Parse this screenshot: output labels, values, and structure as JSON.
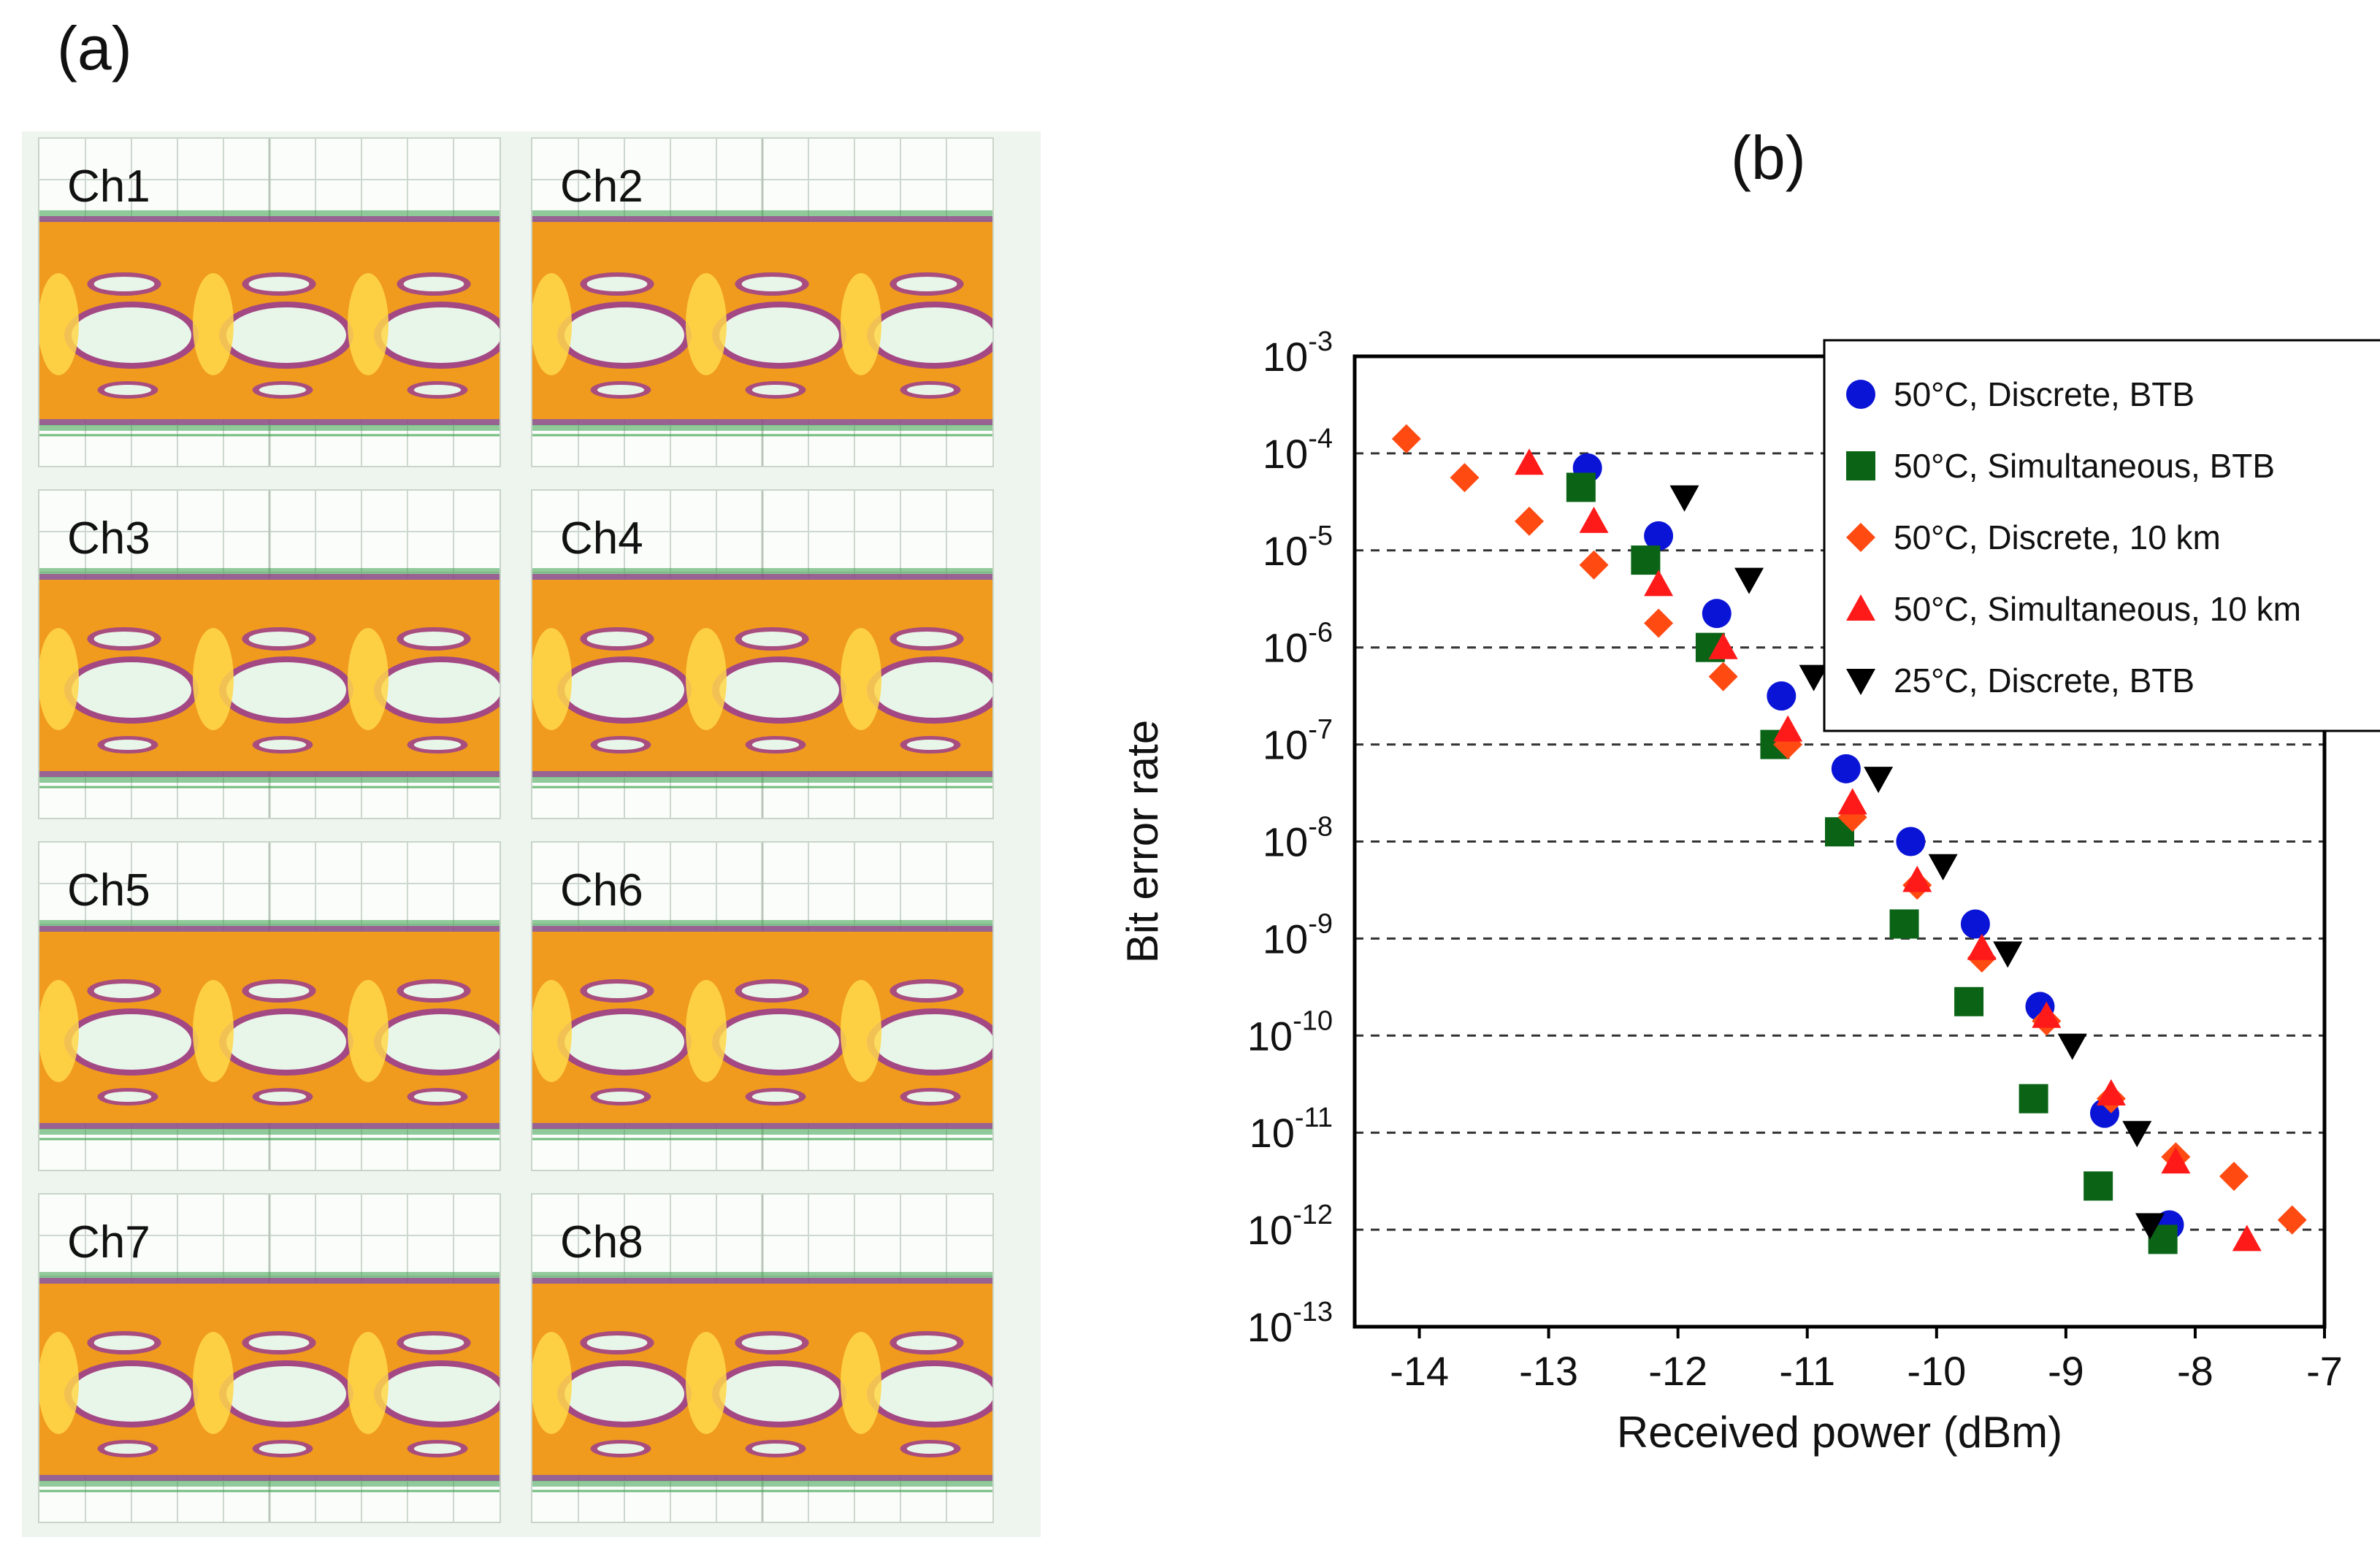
{
  "panel_a": {
    "label": "(a)",
    "channels": [
      "Ch1",
      "Ch2",
      "Ch3",
      "Ch4",
      "Ch5",
      "Ch6",
      "Ch7",
      "Ch8"
    ]
  },
  "panel_b": {
    "label": "(b)"
  },
  "colors": {
    "blue": "#0a14d6",
    "green": "#0b6416",
    "orange": "#ff4a12",
    "red": "#ff1a1a",
    "black": "#000000",
    "grid": "#333333",
    "eye_outer": "#3aa04a",
    "eye_mid": "#9b3f8f",
    "eye_inner": "#f09a1e",
    "eye_core": "#ffd84a"
  },
  "chart_data": {
    "type": "scatter",
    "title": "(b)",
    "xlabel": "Received power (dBm)",
    "ylabel": "Bit error rate",
    "xlim": [
      -14.5,
      -7
    ],
    "yscale": "log",
    "ylim_exp": [
      -13,
      -3
    ],
    "x_ticks": [
      "-14",
      "-13",
      "-12",
      "-11",
      "-10",
      "-9",
      "-8",
      "-7"
    ],
    "y_ticks": [
      {
        "base": "10",
        "exp": "-3",
        "value_exp": -3
      },
      {
        "base": "10",
        "exp": "-4",
        "value_exp": -4
      },
      {
        "base": "10",
        "exp": "-5",
        "value_exp": -5
      },
      {
        "base": "10",
        "exp": "-6",
        "value_exp": -6
      },
      {
        "base": "10",
        "exp": "-7",
        "value_exp": -7
      },
      {
        "base": "10",
        "exp": "-8",
        "value_exp": -8
      },
      {
        "base": "10",
        "exp": "-9",
        "value_exp": -9
      },
      {
        "base": "10",
        "exp": "-10",
        "value_exp": -10
      },
      {
        "base": "10",
        "exp": "-11",
        "value_exp": -11
      },
      {
        "base": "10",
        "exp": "-12",
        "value_exp": -12
      },
      {
        "base": "10",
        "exp": "-13",
        "value_exp": -13
      }
    ],
    "legend_position": "top-right",
    "series": [
      {
        "name": "50°C, Discrete, BTB",
        "marker": "circle",
        "color": "#0a14d6",
        "points": [
          [
            -12.7,
            -4.15
          ],
          [
            -12.15,
            -4.85
          ],
          [
            -11.7,
            -5.65
          ],
          [
            -11.2,
            -6.5
          ],
          [
            -10.7,
            -7.25
          ],
          [
            -10.2,
            -8.0
          ],
          [
            -9.7,
            -8.85
          ],
          [
            -9.2,
            -9.7
          ],
          [
            -8.7,
            -10.8
          ],
          [
            -8.2,
            -11.95
          ]
        ]
      },
      {
        "name": "50°C, Simultaneous, BTB",
        "marker": "square",
        "color": "#0b6416",
        "points": [
          [
            -12.75,
            -4.35
          ],
          [
            -12.25,
            -5.1
          ],
          [
            -11.75,
            -6.0
          ],
          [
            -11.25,
            -7.0
          ],
          [
            -10.75,
            -7.9
          ],
          [
            -10.25,
            -8.85
          ],
          [
            -9.75,
            -9.65
          ],
          [
            -9.25,
            -10.65
          ],
          [
            -8.75,
            -11.55
          ],
          [
            -8.25,
            -12.1
          ]
        ]
      },
      {
        "name": "50°C, Discrete, 10 km",
        "marker": "diamond",
        "color": "#ff4a12",
        "points": [
          [
            -14.1,
            -3.85
          ],
          [
            -13.65,
            -4.25
          ],
          [
            -13.15,
            -4.7
          ],
          [
            -12.65,
            -5.15
          ],
          [
            -12.15,
            -5.75
          ],
          [
            -11.65,
            -6.3
          ],
          [
            -11.15,
            -7.0
          ],
          [
            -10.65,
            -7.75
          ],
          [
            -10.15,
            -8.45
          ],
          [
            -9.65,
            -9.2
          ],
          [
            -9.15,
            -9.85
          ],
          [
            -8.65,
            -10.65
          ],
          [
            -8.15,
            -11.25
          ],
          [
            -7.7,
            -11.45
          ],
          [
            -7.25,
            -11.9
          ]
        ]
      },
      {
        "name": "50°C, Simultaneous, 10 km",
        "marker": "triangle-up",
        "color": "#ff1a1a",
        "points": [
          [
            -13.15,
            -4.1
          ],
          [
            -12.65,
            -4.7
          ],
          [
            -12.15,
            -5.35
          ],
          [
            -11.65,
            -6.0
          ],
          [
            -11.15,
            -6.85
          ],
          [
            -10.65,
            -7.6
          ],
          [
            -10.15,
            -8.4
          ],
          [
            -9.65,
            -9.1
          ],
          [
            -9.15,
            -9.8
          ],
          [
            -8.65,
            -10.6
          ],
          [
            -8.15,
            -11.3
          ],
          [
            -7.6,
            -12.1
          ]
        ]
      },
      {
        "name": "25°C, Discrete, BTB",
        "marker": "triangle-down",
        "color": "#000000",
        "points": [
          [
            -11.95,
            -4.45
          ],
          [
            -11.45,
            -5.3
          ],
          [
            -10.95,
            -6.3
          ],
          [
            -10.45,
            -7.35
          ],
          [
            -9.95,
            -8.25
          ],
          [
            -9.45,
            -9.15
          ],
          [
            -8.95,
            -10.1
          ],
          [
            -8.45,
            -11.0
          ],
          [
            -8.35,
            -11.95
          ]
        ]
      }
    ]
  }
}
